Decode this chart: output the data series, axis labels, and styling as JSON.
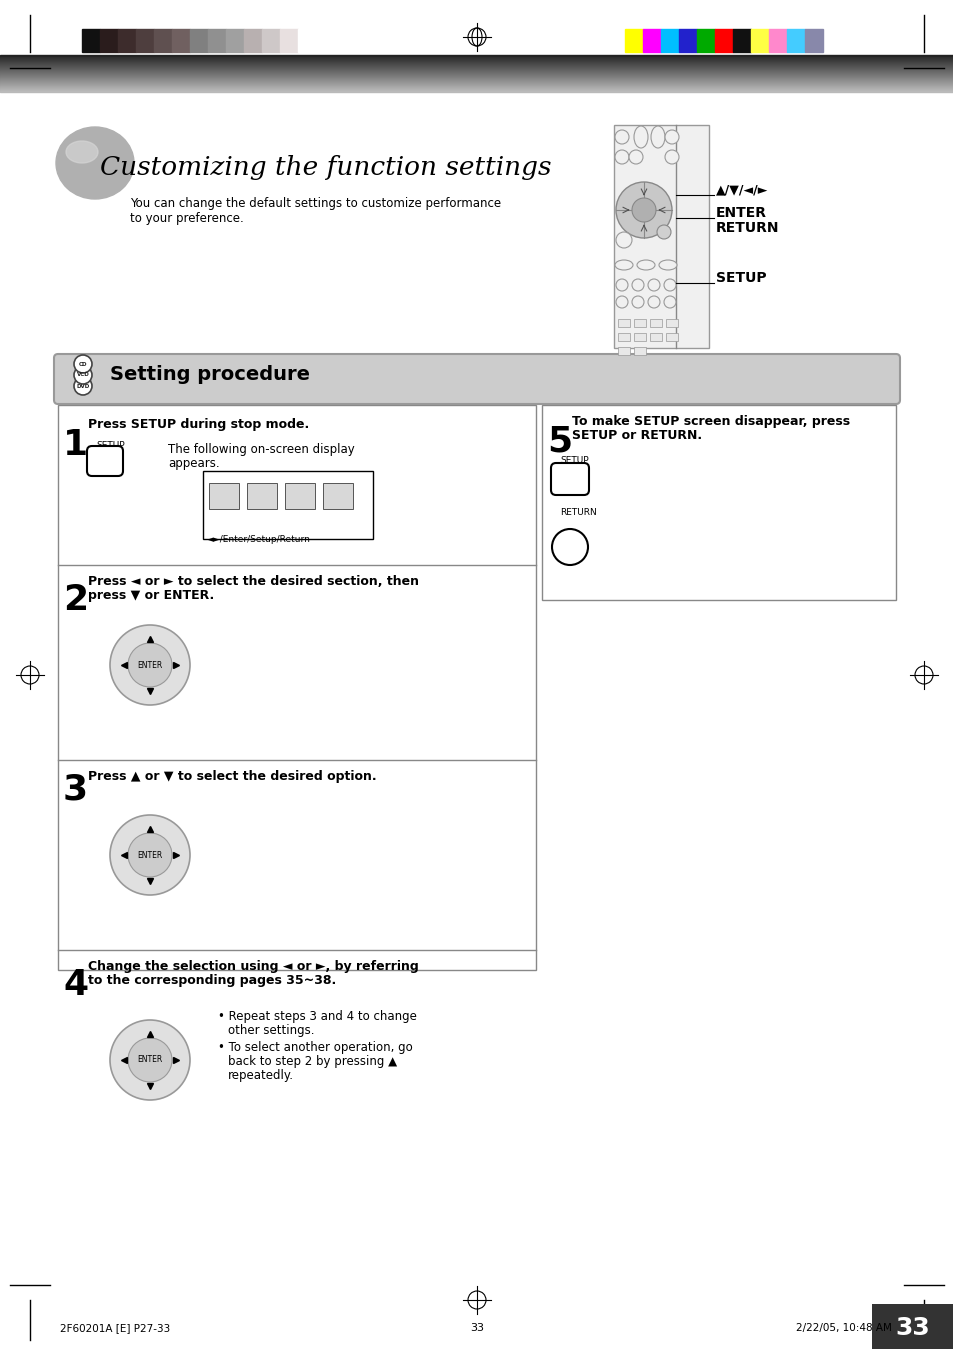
{
  "bg_color": "#ffffff",
  "page_width": 9.54,
  "page_height": 13.51,
  "title": "Customizing the function settings",
  "subtitle_line1": "You can change the default settings to customize performance",
  "subtitle_line2": "to your preference.",
  "section_title": "Setting procedure",
  "color_swatches_left": [
    "#111111",
    "#2a1c1c",
    "#3d2c2c",
    "#4e3e3e",
    "#5f5050",
    "#706060",
    "#808080",
    "#909090",
    "#a0a0a0",
    "#b8b0b0",
    "#cec8c8",
    "#e8e0e0",
    "#ffffff"
  ],
  "color_swatches_right": [
    "#ffff00",
    "#ff00ff",
    "#00bfff",
    "#2222cc",
    "#00aa00",
    "#ff0000",
    "#111111",
    "#ffff44",
    "#ff88cc",
    "#44ccff",
    "#8888aa"
  ],
  "footer_text_left": "2F60201A [E] P27-33",
  "footer_text_center": "33",
  "footer_text_right": "2/22/05, 10:48 AM",
  "page_number": "33"
}
